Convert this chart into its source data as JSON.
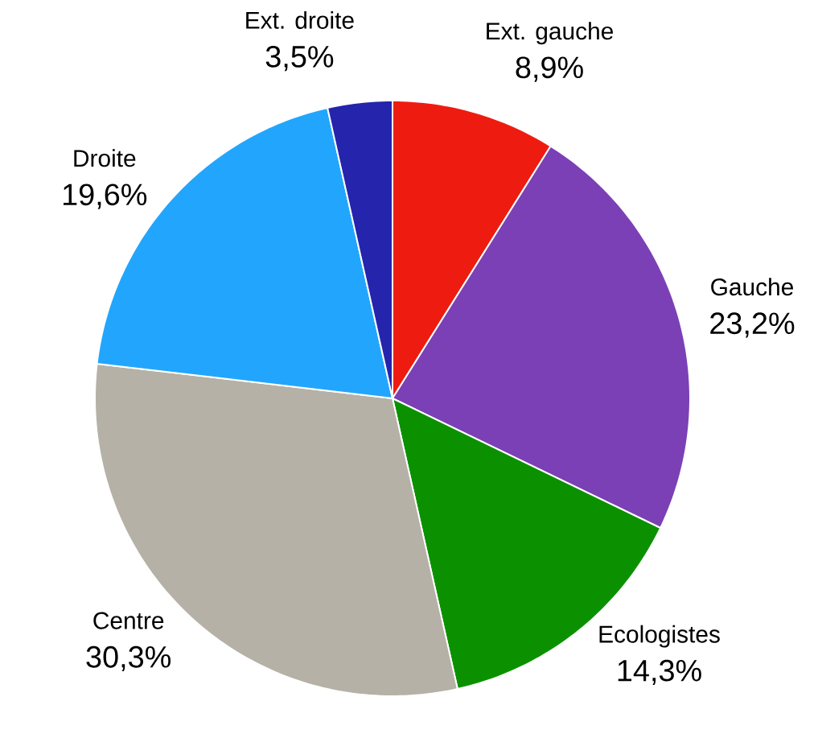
{
  "chart_data": {
    "type": "pie",
    "categories": [
      "Ext. gauche",
      "Gauche",
      "Ecologistes",
      "Centre",
      "Droite",
      "Ext. droite"
    ],
    "values": [
      8.9,
      23.2,
      14.3,
      30.3,
      19.6,
      3.5
    ],
    "value_labels": [
      "8,9%",
      "23,2%",
      "14,3%",
      "30,3%",
      "19,6%",
      "3,5%"
    ],
    "colors": [
      "#ee1c10",
      "#7b40b5",
      "#0b9100",
      "#b5b1a7",
      "#22a6fd",
      "#2424ad"
    ]
  }
}
